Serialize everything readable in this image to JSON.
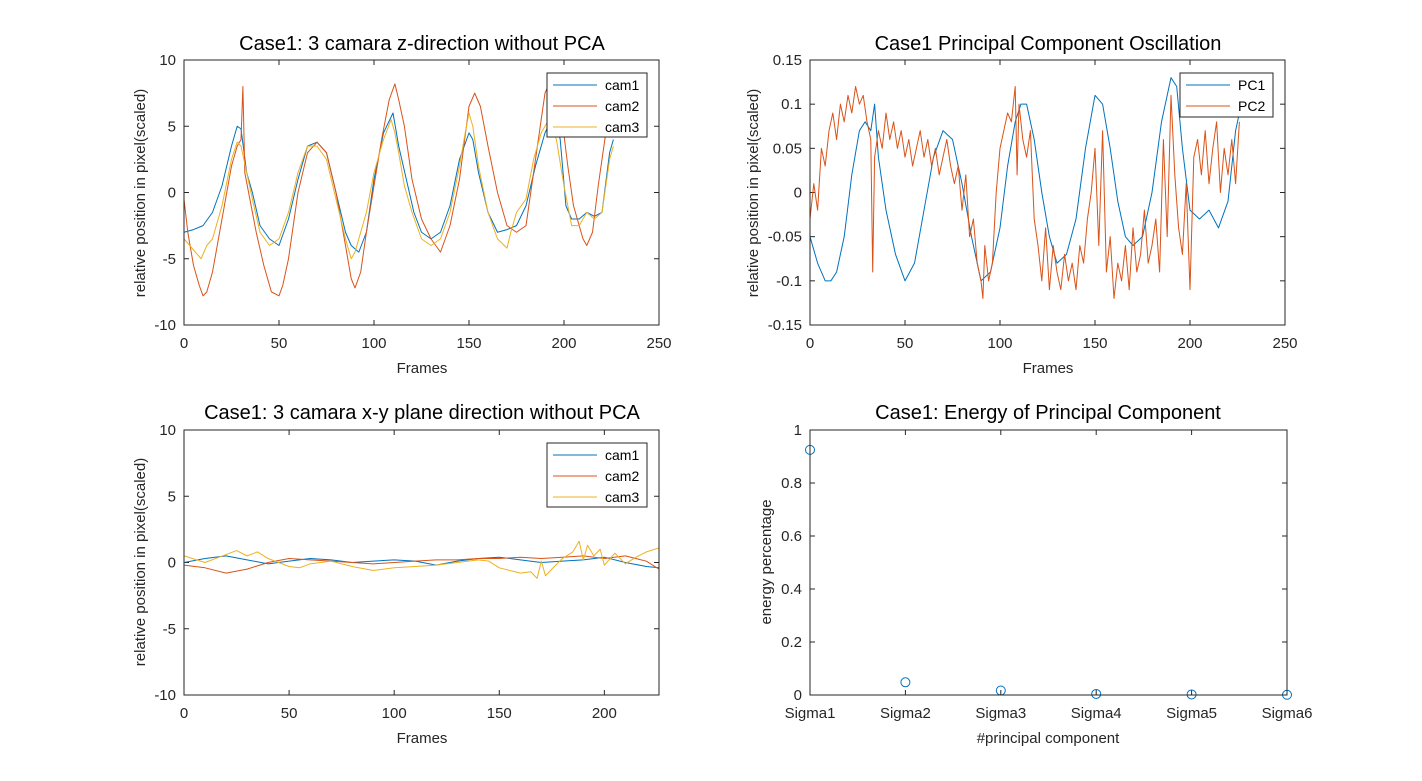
{
  "figure": {
    "background": "#ffffff",
    "colors": {
      "blue": "#0072BD",
      "orange": "#D95319",
      "yellow": "#EDB120",
      "axis": "#262626"
    }
  },
  "chart_data": [
    {
      "id": "p1",
      "type": "line",
      "title": "Case1: 3 camara z-direction without PCA",
      "xlabel": "Frames",
      "ylabel": "relative position in pixel(scaled)",
      "xlim": [
        0,
        250
      ],
      "ylim": [
        -10,
        10
      ],
      "xticks": [
        0,
        50,
        100,
        150,
        200,
        250
      ],
      "yticks": [
        -10,
        -5,
        0,
        5,
        10
      ],
      "grid": false,
      "legend": "top-right",
      "series": [
        {
          "name": "cam1",
          "color": "#0072BD",
          "x": [
            0,
            5,
            10,
            15,
            20,
            25,
            28,
            30,
            33,
            36,
            40,
            45,
            50,
            55,
            60,
            65,
            70,
            75,
            80,
            85,
            88,
            92,
            96,
            100,
            105,
            110,
            113,
            117,
            121,
            125,
            130,
            135,
            140,
            145,
            150,
            152,
            155,
            160,
            165,
            170,
            175,
            180,
            185,
            190,
            195,
            198,
            201,
            204,
            208,
            212,
            216,
            220,
            224,
            226
          ],
          "y": [
            -3.0,
            -2.8,
            -2.5,
            -1.5,
            0.5,
            3.5,
            5.0,
            4.8,
            1.5,
            0.0,
            -2.5,
            -3.5,
            -4.0,
            -2.0,
            1.0,
            3.5,
            3.8,
            3.0,
            0.0,
            -3.0,
            -4.0,
            -4.5,
            -3.0,
            1.0,
            4.5,
            6.0,
            3.5,
            1.0,
            -1.5,
            -3.0,
            -3.5,
            -3.0,
            -1.0,
            2.5,
            4.5,
            4.0,
            1.5,
            -1.5,
            -3.0,
            -2.8,
            -2.5,
            -1.0,
            2.0,
            4.5,
            6.0,
            4.0,
            -1.0,
            -2.0,
            -2.0,
            -1.5,
            -1.8,
            -1.5,
            3.0,
            4.0
          ]
        },
        {
          "name": "cam2",
          "color": "#D95319",
          "x": [
            0,
            2,
            5,
            8,
            10,
            12,
            15,
            20,
            25,
            28,
            30,
            31,
            32,
            34,
            38,
            42,
            46,
            50,
            52,
            55,
            60,
            65,
            70,
            75,
            80,
            85,
            88,
            90,
            93,
            96,
            100,
            104,
            108,
            111,
            113,
            116,
            120,
            125,
            130,
            135,
            140,
            145,
            150,
            153,
            156,
            160,
            165,
            170,
            175,
            180,
            183,
            186,
            190,
            193,
            196,
            199,
            202,
            205,
            210,
            212,
            215,
            218,
            222,
            226
          ],
          "y": [
            -0.5,
            -3.0,
            -5.5,
            -7.0,
            -7.8,
            -7.5,
            -6.0,
            -2.0,
            2.0,
            3.5,
            4.0,
            8.0,
            1.5,
            0.0,
            -3.0,
            -5.5,
            -7.5,
            -7.8,
            -7.0,
            -5.0,
            0.0,
            3.0,
            3.8,
            3.0,
            0.0,
            -4.0,
            -6.5,
            -7.2,
            -6.0,
            -3.0,
            0.5,
            4.0,
            7.0,
            8.2,
            7.0,
            5.0,
            1.0,
            -2.0,
            -3.5,
            -4.5,
            -2.5,
            1.0,
            6.5,
            7.5,
            6.5,
            3.5,
            0.0,
            -2.5,
            -3.0,
            -2.5,
            0.5,
            3.5,
            7.5,
            8.5,
            7.5,
            5.5,
            2.0,
            -1.0,
            -3.5,
            -4.0,
            -3.0,
            0.5,
            4.5,
            7.0
          ]
        },
        {
          "name": "cam3",
          "color": "#EDB120",
          "x": [
            0,
            3,
            6,
            9,
            12,
            15,
            20,
            25,
            28,
            30,
            33,
            36,
            40,
            45,
            50,
            55,
            60,
            65,
            70,
            75,
            80,
            85,
            88,
            90,
            93,
            96,
            100,
            105,
            109,
            111,
            113,
            116,
            120,
            125,
            130,
            135,
            140,
            145,
            148,
            150,
            152,
            155,
            160,
            165,
            170,
            172,
            175,
            180,
            184,
            188,
            192,
            196,
            200,
            204,
            208,
            212,
            216,
            220,
            224,
            226
          ],
          "y": [
            -3.5,
            -4.0,
            -4.5,
            -5.0,
            -4.0,
            -3.5,
            -1.0,
            2.5,
            3.8,
            3.5,
            1.5,
            -0.5,
            -3.0,
            -4.0,
            -3.5,
            -1.5,
            1.5,
            3.5,
            3.5,
            2.5,
            -0.5,
            -3.5,
            -5.0,
            -4.5,
            -3.0,
            -1.5,
            1.5,
            4.0,
            5.5,
            4.5,
            3.0,
            0.5,
            -1.5,
            -3.5,
            -4.0,
            -3.5,
            -1.5,
            2.0,
            4.5,
            6.0,
            5.0,
            2.0,
            -1.5,
            -3.5,
            -4.2,
            -3.0,
            -1.5,
            -0.5,
            2.5,
            4.5,
            5.5,
            4.0,
            0.5,
            -2.5,
            -2.5,
            -1.5,
            -2.0,
            -1.5,
            2.5,
            3.5
          ]
        }
      ]
    },
    {
      "id": "p2",
      "type": "line",
      "title": "Case1 Principal Component Oscillation",
      "xlabel": "Frames",
      "ylabel": "relative position in pixel(scaled)",
      "xlim": [
        0,
        250
      ],
      "ylim": [
        -0.15,
        0.15
      ],
      "xticks": [
        0,
        50,
        100,
        150,
        200,
        250
      ],
      "yticks": [
        -0.15,
        -0.1,
        -0.05,
        0,
        0.05,
        0.1,
        0.15
      ],
      "ytick_labels": [
        "-0.15",
        "-0.1",
        "-0.05",
        "0",
        "0.05",
        "0.1",
        "0.15"
      ],
      "grid": false,
      "legend": "top-right",
      "series": [
        {
          "name": "PC1",
          "color": "#0072BD",
          "x": [
            0,
            4,
            8,
            11,
            14,
            18,
            22,
            26,
            29,
            32,
            34,
            36,
            40,
            45,
            50,
            55,
            60,
            65,
            70,
            75,
            80,
            85,
            90,
            95,
            100,
            104,
            108,
            111,
            114,
            118,
            122,
            126,
            130,
            135,
            140,
            145,
            150,
            154,
            158,
            162,
            166,
            170,
            175,
            180,
            185,
            190,
            193,
            196,
            200,
            205,
            210,
            215,
            220,
            224,
            226
          ],
          "y": [
            -0.05,
            -0.08,
            -0.1,
            -0.1,
            -0.09,
            -0.05,
            0.02,
            0.07,
            0.08,
            0.07,
            0.1,
            0.04,
            -0.02,
            -0.07,
            -0.1,
            -0.08,
            -0.02,
            0.04,
            0.07,
            0.06,
            0.01,
            -0.05,
            -0.1,
            -0.09,
            -0.04,
            0.03,
            0.08,
            0.1,
            0.1,
            0.06,
            0.0,
            -0.05,
            -0.08,
            -0.07,
            -0.03,
            0.05,
            0.11,
            0.1,
            0.05,
            -0.01,
            -0.05,
            -0.06,
            -0.05,
            0.0,
            0.08,
            0.13,
            0.12,
            0.05,
            -0.02,
            -0.03,
            -0.02,
            -0.04,
            -0.01,
            0.07,
            0.09
          ]
        },
        {
          "name": "PC2",
          "color": "#D95319",
          "x": [
            0,
            2,
            4,
            6,
            8,
            10,
            12,
            14,
            16,
            18,
            20,
            22,
            24,
            26,
            28,
            30,
            32,
            33,
            34,
            36,
            38,
            40,
            42,
            44,
            46,
            48,
            50,
            52,
            54,
            56,
            58,
            60,
            62,
            64,
            66,
            68,
            70,
            72,
            74,
            76,
            78,
            80,
            82,
            84,
            86,
            88,
            90,
            91,
            92,
            94,
            96,
            98,
            100,
            102,
            104,
            106,
            108,
            109,
            110,
            112,
            114,
            116,
            118,
            120,
            122,
            124,
            126,
            128,
            130,
            132,
            134,
            136,
            138,
            140,
            142,
            144,
            146,
            148,
            150,
            152,
            154,
            156,
            158,
            160,
            162,
            164,
            166,
            168,
            170,
            172,
            174,
            176,
            178,
            180,
            182,
            184,
            186,
            188,
            190,
            192,
            194,
            196,
            198,
            200,
            202,
            204,
            206,
            208,
            210,
            212,
            214,
            216,
            218,
            220,
            222,
            224,
            226
          ],
          "y": [
            -0.03,
            0.01,
            -0.02,
            0.05,
            0.03,
            0.07,
            0.09,
            0.06,
            0.1,
            0.08,
            0.11,
            0.09,
            0.12,
            0.1,
            0.11,
            0.08,
            0.06,
            -0.09,
            0.04,
            0.07,
            0.05,
            0.09,
            0.06,
            0.08,
            0.05,
            0.07,
            0.04,
            0.06,
            0.03,
            0.05,
            0.07,
            0.04,
            0.06,
            0.03,
            0.05,
            0.02,
            0.04,
            0.06,
            0.03,
            0.01,
            0.03,
            -0.02,
            0.02,
            -0.05,
            -0.03,
            -0.08,
            -0.1,
            -0.12,
            -0.06,
            -0.1,
            -0.08,
            0.0,
            0.05,
            0.07,
            0.09,
            0.08,
            0.12,
            0.02,
            0.1,
            0.06,
            0.04,
            0.07,
            -0.03,
            -0.06,
            -0.1,
            -0.04,
            -0.11,
            -0.06,
            -0.09,
            -0.11,
            -0.07,
            -0.1,
            -0.08,
            -0.11,
            -0.06,
            -0.08,
            -0.03,
            0.0,
            0.05,
            -0.06,
            0.07,
            -0.09,
            -0.05,
            -0.12,
            -0.08,
            -0.1,
            -0.06,
            -0.11,
            -0.04,
            -0.09,
            -0.07,
            -0.02,
            -0.08,
            -0.06,
            -0.03,
            -0.09,
            0.06,
            -0.05,
            0.11,
            0.02,
            -0.04,
            -0.07,
            0.01,
            -0.11,
            0.04,
            0.06,
            0.02,
            0.07,
            0.01,
            0.05,
            0.08,
            0.0,
            0.05,
            0.02,
            0.06,
            0.01,
            0.08
          ]
        }
      ]
    },
    {
      "id": "p3",
      "type": "line",
      "title": "Case1: 3 camara x-y plane direction without PCA",
      "xlabel": "Frames",
      "ylabel": "relative position in pixel(scaled)",
      "xlim": [
        0,
        226
      ],
      "ylim": [
        -10,
        10
      ],
      "xticks": [
        0,
        50,
        100,
        150,
        200
      ],
      "yticks": [
        -10,
        -5,
        0,
        5,
        10
      ],
      "grid": false,
      "legend": "top-right",
      "series": [
        {
          "name": "cam1",
          "color": "#0072BD",
          "x": [
            0,
            10,
            20,
            30,
            40,
            50,
            60,
            70,
            80,
            90,
            100,
            110,
            120,
            130,
            140,
            150,
            160,
            170,
            180,
            190,
            200,
            210,
            220,
            226
          ],
          "y": [
            0.0,
            0.3,
            0.5,
            0.2,
            -0.1,
            0.1,
            0.3,
            0.2,
            0.0,
            0.1,
            0.2,
            0.1,
            -0.2,
            0.1,
            0.3,
            0.4,
            0.2,
            0.0,
            0.1,
            0.2,
            0.4,
            0.0,
            -0.3,
            -0.4
          ]
        },
        {
          "name": "cam2",
          "color": "#D95319",
          "x": [
            0,
            10,
            20,
            30,
            40,
            50,
            60,
            70,
            80,
            90,
            100,
            110,
            120,
            130,
            140,
            150,
            160,
            170,
            180,
            190,
            200,
            210,
            220,
            226
          ],
          "y": [
            -0.2,
            -0.4,
            -0.8,
            -0.5,
            0.0,
            0.3,
            0.2,
            0.1,
            0.0,
            -0.1,
            0.0,
            0.1,
            0.2,
            0.2,
            0.3,
            0.3,
            0.4,
            0.3,
            0.4,
            0.5,
            0.3,
            0.5,
            0.1,
            -0.5
          ]
        },
        {
          "name": "cam3",
          "color": "#EDB120",
          "x": [
            0,
            10,
            20,
            25,
            30,
            35,
            40,
            50,
            55,
            60,
            70,
            80,
            90,
            100,
            110,
            120,
            130,
            140,
            145,
            150,
            160,
            165,
            168,
            170,
            172,
            175,
            180,
            185,
            188,
            190,
            192,
            195,
            198,
            200,
            205,
            210,
            215,
            220,
            226
          ],
          "y": [
            0.5,
            0.0,
            0.6,
            0.9,
            0.5,
            0.8,
            0.3,
            -0.3,
            -0.4,
            -0.1,
            0.1,
            -0.3,
            -0.6,
            -0.4,
            -0.3,
            -0.2,
            0.0,
            0.2,
            0.1,
            -0.4,
            -0.8,
            -0.7,
            -1.2,
            0.1,
            -1.0,
            -0.5,
            0.3,
            0.8,
            1.6,
            0.2,
            1.3,
            0.5,
            1.0,
            -0.2,
            0.7,
            -0.1,
            0.4,
            0.8,
            1.1
          ]
        }
      ]
    },
    {
      "id": "p4",
      "type": "scatter",
      "title": "Case1: Energy of Principal Component",
      "xlabel": "#principal component",
      "ylabel": "energy percentage",
      "categories": [
        "Sigma1",
        "Sigma2",
        "Sigma3",
        "Sigma4",
        "Sigma5",
        "Sigma6"
      ],
      "values": [
        0.925,
        0.048,
        0.017,
        0.004,
        0.002,
        0.001
      ],
      "ylim": [
        0,
        1
      ],
      "yticks": [
        0,
        0.2,
        0.4,
        0.6,
        0.8,
        1
      ],
      "marker": "circle",
      "color": "#0072BD",
      "grid": false
    }
  ]
}
